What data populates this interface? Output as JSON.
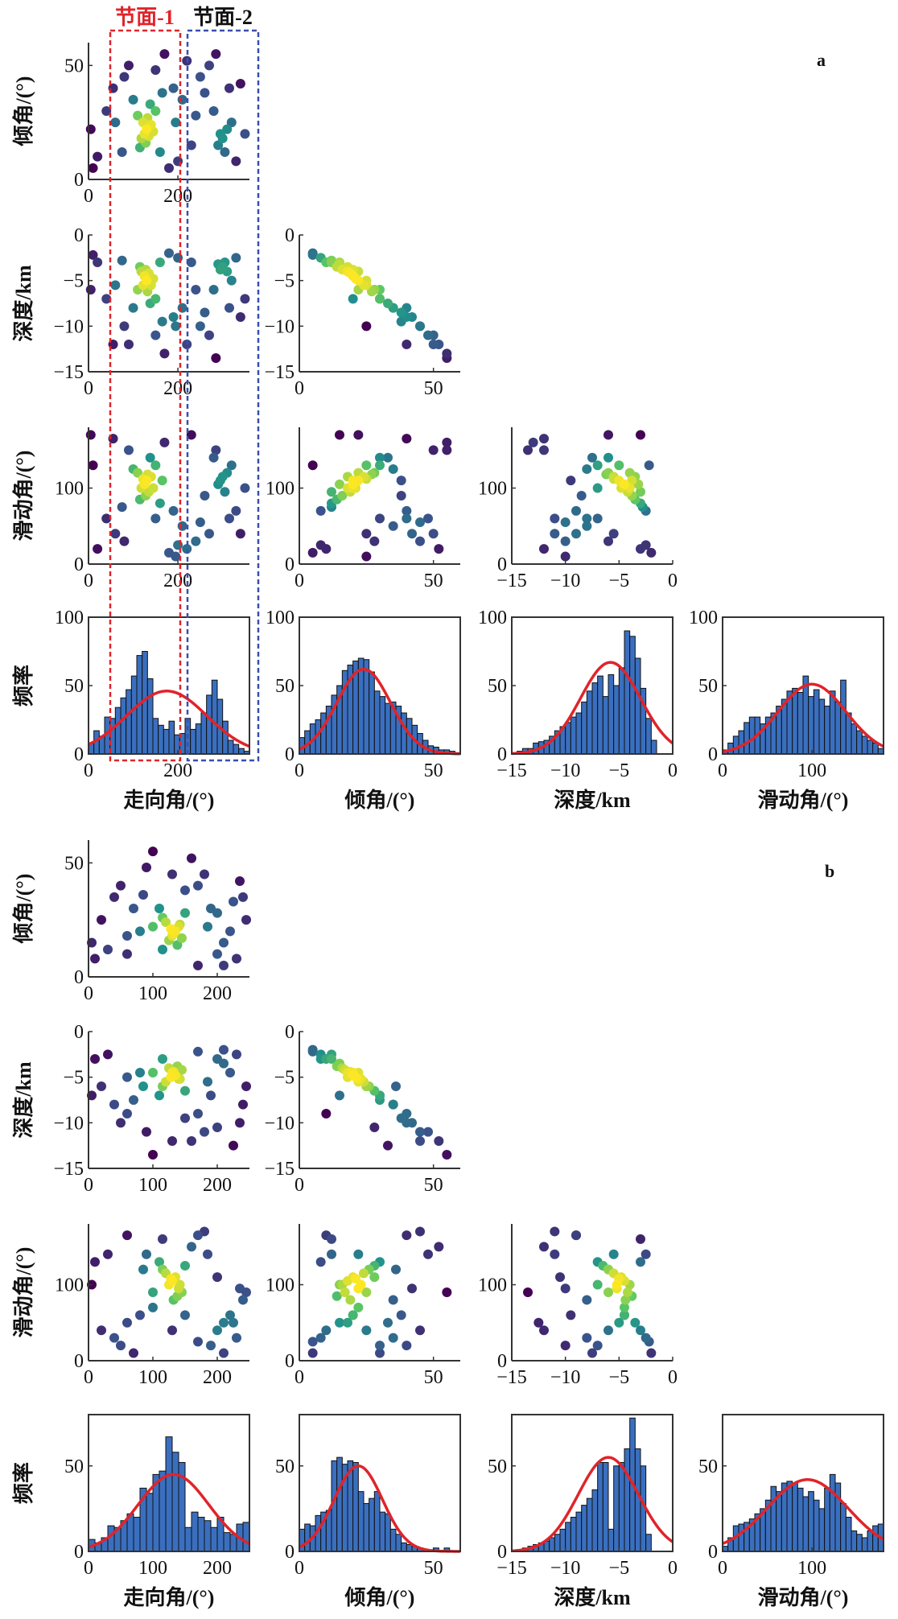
{
  "colors": {
    "hist_bar": "#3a6fbf",
    "fit_line": "#e0242a",
    "plane1_box": "#e0242a",
    "plane2_box": "#3a4fb0",
    "density_colormap": [
      "#440154",
      "#3b528b",
      "#21918c",
      "#5ec962",
      "#fde725"
    ]
  },
  "annotations": {
    "plane1_label": "节面-1",
    "plane2_label": "节面-2"
  },
  "chart_data": [
    {
      "panel_label": "a",
      "type": "scatter-matrix",
      "variables": [
        "strike",
        "dip",
        "depth",
        "rake"
      ],
      "axis_labels": {
        "strike": "走向角/(°)",
        "dip": "倾角/(°)",
        "depth": "深度/km",
        "rake": "滑动角/(°)",
        "frequency": "频率"
      },
      "ranges": {
        "strike": [
          0,
          360
        ],
        "dip": [
          0,
          60
        ],
        "depth": [
          -15,
          0
        ],
        "rake": [
          0,
          180
        ],
        "frequency": [
          0,
          100
        ]
      },
      "ticks": {
        "strike": [
          0,
          200
        ],
        "dip": [
          0,
          50
        ],
        "depth": [
          -15,
          -10,
          -5,
          0
        ],
        "rake": [
          0,
          100
        ],
        "frequency": [
          0,
          50,
          100
        ]
      },
      "highlight_ranges": {
        "plane1_strike": [
          55,
          205
        ],
        "plane2_strike": [
          215,
          345
        ]
      },
      "samples": [
        [
          125,
          20,
          -4.5,
          105
        ],
        [
          130,
          22,
          -5,
          110
        ],
        [
          118,
          18,
          -4,
          100
        ],
        [
          140,
          24,
          -5.5,
          115
        ],
        [
          135,
          19,
          -4.2,
          95
        ],
        [
          110,
          28,
          -6,
          120
        ],
        [
          150,
          30,
          -7,
          130
        ],
        [
          128,
          16,
          -3.8,
          90
        ],
        [
          122,
          25,
          -5.5,
          112
        ],
        [
          145,
          21,
          -4.8,
          100
        ],
        [
          100,
          35,
          -8,
          125
        ],
        [
          160,
          12,
          -3,
          80
        ],
        [
          138,
          33,
          -7.5,
          140
        ],
        [
          115,
          14,
          -3.5,
          85
        ],
        [
          132,
          27,
          -6.2,
          118
        ],
        [
          300,
          18,
          -3.5,
          115
        ],
        [
          310,
          22,
          -4,
          120
        ],
        [
          290,
          15,
          -3.2,
          105
        ],
        [
          320,
          25,
          -5,
          130
        ],
        [
          295,
          20,
          -3.8,
          110
        ],
        [
          305,
          12,
          -3,
          95
        ],
        [
          280,
          30,
          -6,
          140
        ],
        [
          315,
          40,
          -8,
          60
        ],
        [
          270,
          50,
          -11,
          40
        ],
        [
          330,
          8,
          -2.5,
          70
        ],
        [
          60,
          25,
          -5.5,
          40
        ],
        [
          40,
          30,
          -7,
          60
        ],
        [
          20,
          10,
          -3,
          20
        ],
        [
          80,
          45,
          -10,
          30
        ],
        [
          180,
          5,
          -2,
          15
        ],
        [
          200,
          8,
          -2.5,
          25
        ],
        [
          210,
          35,
          -8,
          50
        ],
        [
          190,
          40,
          -9,
          70
        ],
        [
          240,
          28,
          -6,
          30
        ],
        [
          250,
          45,
          -10,
          55
        ],
        [
          170,
          55,
          -13,
          160
        ],
        [
          90,
          50,
          -12,
          150
        ],
        [
          10,
          5,
          -2.2,
          130
        ],
        [
          230,
          15,
          -3,
          170
        ],
        [
          260,
          38,
          -8.5,
          90
        ],
        [
          340,
          42,
          -9,
          40
        ],
        [
          350,
          20,
          -7,
          100
        ],
        [
          5,
          22,
          -6,
          170
        ],
        [
          150,
          48,
          -11,
          60
        ],
        [
          220,
          52,
          -12,
          20
        ],
        [
          75,
          12,
          -2.8,
          75
        ],
        [
          165,
          38,
          -9.5,
          110
        ],
        [
          285,
          55,
          -13.5,
          150
        ],
        [
          55,
          40,
          -12,
          165
        ],
        [
          195,
          25,
          -10,
          10
        ]
      ],
      "histograms": {
        "strike": {
          "bin_start": 0,
          "bin_width": 12,
          "counts": [
            8,
            17,
            13,
            27,
            26,
            34,
            41,
            47,
            57,
            72,
            75,
            55,
            26,
            21,
            18,
            24,
            14,
            15,
            26,
            18,
            22,
            30,
            43,
            54,
            40,
            24,
            10,
            7,
            4,
            2
          ],
          "fit": {
            "mean": 175,
            "sd": 90,
            "peak": 46
          }
        },
        "dip": {
          "bin_start": 0,
          "bin_width": 2,
          "counts": [
            12,
            17,
            22,
            25,
            30,
            35,
            43,
            50,
            61,
            65,
            68,
            70,
            69,
            60,
            46,
            42,
            37,
            38,
            35,
            30,
            26,
            21,
            15,
            10,
            6,
            5,
            3,
            3,
            2,
            1
          ],
          "fit": {
            "mean": 24,
            "sd": 10,
            "peak": 62
          }
        },
        "depth": {
          "bin_start": -14.5,
          "bin_width": 0.5,
          "counts": [
            2,
            4,
            4,
            8,
            9,
            10,
            13,
            17,
            20,
            23,
            27,
            30,
            38,
            46,
            52,
            57,
            42,
            58,
            50,
            63,
            90,
            86,
            70,
            48,
            26,
            10
          ],
          "fit": {
            "mean": -5.8,
            "sd": 2.8,
            "peak": 67
          }
        },
        "rake": {
          "bin_start": 0,
          "bin_width": 6,
          "counts": [
            3,
            8,
            13,
            17,
            23,
            27,
            27,
            22,
            27,
            30,
            35,
            40,
            46,
            48,
            45,
            57,
            42,
            47,
            40,
            35,
            46,
            38,
            54,
            30,
            22,
            17,
            13,
            10,
            8,
            4
          ],
          "fit": {
            "mean": 100,
            "sd": 38,
            "peak": 51
          }
        }
      }
    },
    {
      "panel_label": "b",
      "type": "scatter-matrix",
      "variables": [
        "strike",
        "dip",
        "depth",
        "rake"
      ],
      "axis_labels": {
        "strike": "走向角/(°)",
        "dip": "倾角/(°)",
        "depth": "深度/km",
        "rake": "滑动角/(°)",
        "frequency": "频率"
      },
      "ranges": {
        "strike": [
          0,
          250
        ],
        "dip": [
          0,
          60
        ],
        "depth": [
          -15,
          0
        ],
        "rake": [
          0,
          180
        ],
        "frequency": [
          0,
          80
        ]
      },
      "ticks": {
        "strike": [
          0,
          100,
          200
        ],
        "dip": [
          0,
          50
        ],
        "depth": [
          -15,
          -10,
          -5,
          0
        ],
        "rake": [
          0,
          100
        ],
        "frequency": [
          0,
          50
        ]
      },
      "samples": [
        [
          130,
          18,
          -4.5,
          105
        ],
        [
          135,
          20,
          -4.8,
          110
        ],
        [
          125,
          16,
          -4,
          100
        ],
        [
          140,
          22,
          -5.2,
          95
        ],
        [
          120,
          24,
          -5.5,
          115
        ],
        [
          145,
          17,
          -4.2,
          90
        ],
        [
          115,
          26,
          -6,
          120
        ],
        [
          138,
          14,
          -3.8,
          85
        ],
        [
          128,
          21,
          -5,
          108
        ],
        [
          150,
          28,
          -6.5,
          125
        ],
        [
          110,
          30,
          -7,
          130
        ],
        [
          132,
          19,
          -4.4,
          80
        ],
        [
          142,
          23,
          -5.2,
          100
        ],
        [
          100,
          22,
          -4.5,
          70
        ],
        [
          80,
          20,
          -4.5,
          60
        ],
        [
          60,
          18,
          -5,
          50
        ],
        [
          200,
          10,
          -3,
          40
        ],
        [
          210,
          15,
          -3.5,
          50
        ],
        [
          220,
          20,
          -4.5,
          60
        ],
        [
          230,
          8,
          -2.5,
          30
        ],
        [
          190,
          30,
          -7,
          20
        ],
        [
          240,
          35,
          -8,
          80
        ],
        [
          180,
          45,
          -11,
          170
        ],
        [
          170,
          40,
          -9,
          165
        ],
        [
          210,
          5,
          -2,
          10
        ],
        [
          245,
          25,
          -6,
          90
        ],
        [
          160,
          52,
          -12,
          150
        ],
        [
          90,
          48,
          -11,
          140
        ],
        [
          30,
          12,
          -2.5,
          140
        ],
        [
          10,
          8,
          -3,
          130
        ],
        [
          20,
          25,
          -6,
          40
        ],
        [
          40,
          35,
          -8,
          30
        ],
        [
          50,
          40,
          -10,
          20
        ],
        [
          70,
          30,
          -7.5,
          10
        ],
        [
          100,
          55,
          -13.5,
          90
        ],
        [
          150,
          38,
          -9.5,
          60
        ],
        [
          130,
          45,
          -12,
          40
        ],
        [
          235,
          42,
          -10,
          95
        ],
        [
          200,
          28,
          -10.5,
          110
        ],
        [
          5,
          15,
          -7,
          100
        ],
        [
          60,
          10,
          -9,
          165
        ],
        [
          170,
          5,
          -2.2,
          25
        ],
        [
          225,
          33,
          -12.5,
          50
        ],
        [
          115,
          12,
          -3,
          160
        ],
        [
          85,
          36,
          -6,
          120
        ],
        [
          185,
          22,
          -5.5,
          140
        ]
      ],
      "histograms": {
        "strike": {
          "bin_start": 0,
          "bin_width": 10,
          "counts": [
            7,
            5,
            8,
            15,
            14,
            18,
            22,
            20,
            37,
            34,
            45,
            47,
            67,
            58,
            52,
            14,
            23,
            20,
            18,
            14,
            20,
            11,
            10,
            16,
            17
          ],
          "fit": {
            "mean": 132,
            "sd": 55,
            "peak": 45
          }
        },
        "dip": {
          "bin_start": 0,
          "bin_width": 2,
          "counts": [
            13,
            16,
            15,
            21,
            23,
            24,
            53,
            55,
            51,
            53,
            52,
            35,
            28,
            31,
            35,
            23,
            22,
            13,
            10,
            5,
            4,
            3,
            2,
            1,
            0,
            2,
            0,
            2,
            0,
            0
          ],
          "fit": {
            "mean": 22,
            "sd": 9,
            "peak": 50
          }
        },
        "depth": {
          "bin_start": -14.5,
          "bin_width": 0.5,
          "counts": [
            1,
            2,
            3,
            4,
            5,
            6,
            8,
            10,
            13,
            17,
            20,
            23,
            27,
            31,
            36,
            52,
            52,
            13,
            50,
            52,
            60,
            78,
            60,
            50,
            10,
            0
          ],
          "fit": {
            "mean": -6,
            "sd": 2.8,
            "peak": 55
          }
        },
        "rake": {
          "bin_start": 0,
          "bin_width": 6,
          "counts": [
            3,
            8,
            15,
            16,
            17,
            19,
            22,
            25,
            30,
            38,
            35,
            40,
            41,
            40,
            37,
            32,
            35,
            30,
            25,
            37,
            45,
            40,
            28,
            20,
            12,
            10,
            8,
            12,
            15,
            16
          ],
          "fit": {
            "mean": 95,
            "sd": 45,
            "peak": 42
          }
        }
      }
    }
  ]
}
